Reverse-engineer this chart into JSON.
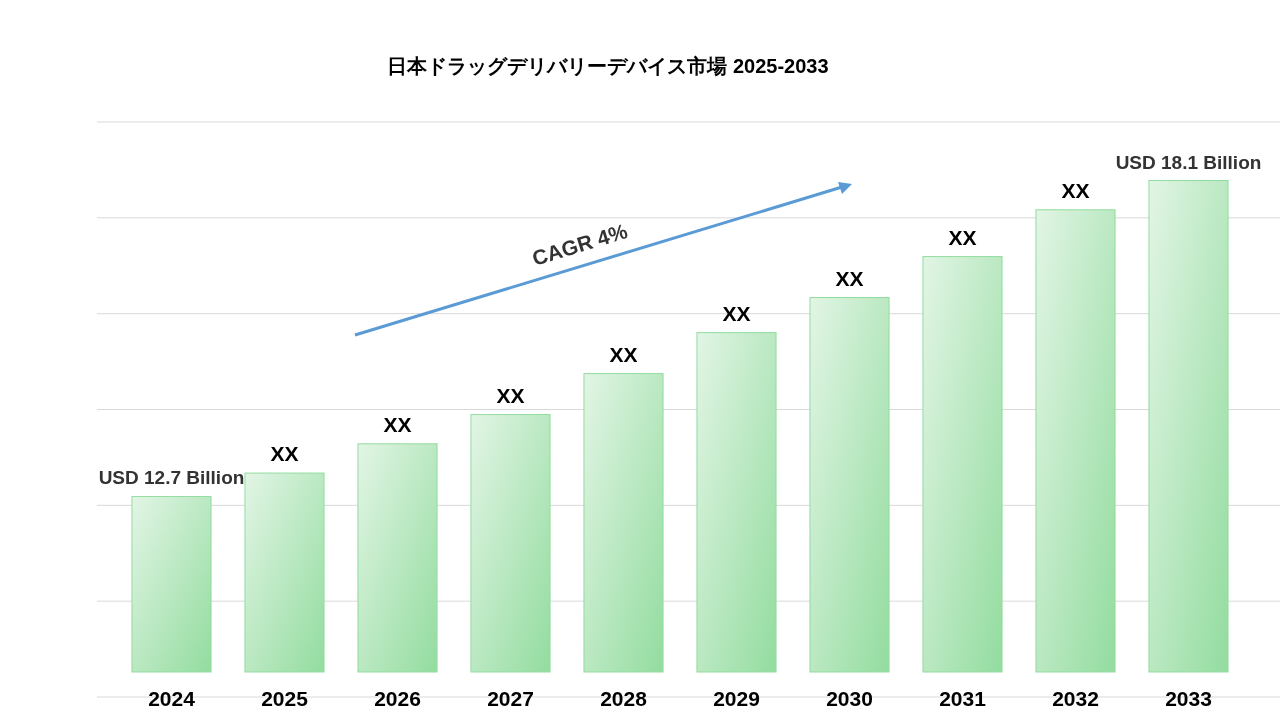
{
  "chart_data": {
    "type": "bar",
    "title": "日本ドラッグデリバリーデバイス市場  2025-2033",
    "categories": [
      "2024",
      "2025",
      "2026",
      "2027",
      "2028",
      "2029",
      "2030",
      "2031",
      "2032",
      "2033"
    ],
    "values": [
      12.7,
      13.1,
      13.6,
      14.1,
      14.8,
      15.5,
      16.1,
      16.8,
      17.6,
      18.1
    ],
    "color": "#93dc9f",
    "ylim": [
      9.7,
      19.1
    ],
    "value_labels": [
      "USD 12.7 Billion",
      "XX",
      "XX",
      "XX",
      "XX",
      "XX",
      "XX",
      "XX",
      "XX",
      "USD 18.1 Billion"
    ],
    "annotations": [
      "CAGR  4%"
    ],
    "grid": "y"
  }
}
